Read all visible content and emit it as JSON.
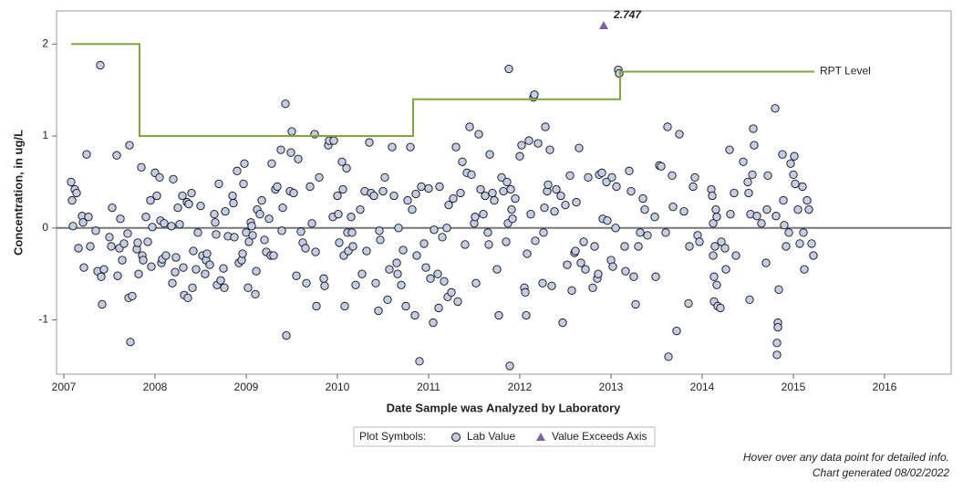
{
  "chart_data": {
    "type": "scatter",
    "x_label": "Date Sample was Analyzed by Laboratory",
    "y_label": "Concentration, in ug/L",
    "xlim": [
      2006.92,
      2016.73
    ],
    "ylim": [
      -1.59,
      2.36
    ],
    "xticks": [
      2007,
      2008,
      2009,
      2010,
      2011,
      2012,
      2013,
      2014,
      2015,
      2016
    ],
    "yticks": [
      -1,
      0,
      1,
      2
    ],
    "reference_y": 0,
    "legend_title": "Plot Symbols:",
    "footnotes": [
      "Hover over any data point for detailed info.",
      "Chart generated 08/02/2022"
    ],
    "series": [
      {
        "name": "Lab Value",
        "marker": "circle",
        "color": "#c3cde6",
        "x": [
          2007.08,
          2007.09,
          2007.1,
          2007.12,
          2007.14,
          2007.16,
          2007.2,
          2007.21,
          2007.22,
          2007.25,
          2007.27,
          2007.29,
          2007.35,
          2007.37,
          2007.4,
          2007.41,
          2007.42,
          2007.44,
          2007.5,
          2007.52,
          2007.53,
          2007.58,
          2007.59,
          2007.61,
          2007.62,
          2007.64,
          2007.66,
          2007.7,
          2007.71,
          2007.72,
          2007.73,
          2007.75,
          2007.8,
          2007.81,
          2007.82,
          2007.85,
          2007.86,
          2007.87,
          2007.9,
          2007.92,
          2007.95,
          2007.96,
          2007.97,
          2008.0,
          2008.02,
          2008.05,
          2008.06,
          2008.07,
          2008.08,
          2008.1,
          2008.12,
          2008.18,
          2008.19,
          2008.2,
          2008.22,
          2008.23,
          2008.25,
          2008.27,
          2008.3,
          2008.31,
          2008.32,
          2008.35,
          2008.36,
          2008.37,
          2008.4,
          2008.41,
          2008.42,
          2008.45,
          2008.47,
          2008.5,
          2008.52,
          2008.55,
          2008.56,
          2008.57,
          2008.6,
          2008.65,
          2008.66,
          2008.67,
          2008.68,
          2008.7,
          2008.72,
          2008.75,
          2008.76,
          2008.77,
          2008.8,
          2008.85,
          2008.86,
          2008.87,
          2008.9,
          2008.92,
          2008.95,
          2008.96,
          2008.97,
          2008.98,
          2009.0,
          2009.02,
          2009.03,
          2009.05,
          2009.06,
          2009.07,
          2009.1,
          2009.11,
          2009.12,
          2009.15,
          2009.17,
          2009.2,
          2009.22,
          2009.25,
          2009.27,
          2009.28,
          2009.3,
          2009.32,
          2009.34,
          2009.38,
          2009.39,
          2009.4,
          2009.43,
          2009.44,
          2009.48,
          2009.49,
          2009.5,
          2009.52,
          2009.55,
          2009.57,
          2009.6,
          2009.62,
          2009.65,
          2009.66,
          2009.7,
          2009.72,
          2009.75,
          2009.76,
          2009.77,
          2009.8,
          2009.85,
          2009.86,
          2009.9,
          2009.91,
          2009.95,
          2009.96,
          2010.0,
          2010.01,
          2010.02,
          2010.05,
          2010.06,
          2010.07,
          2010.08,
          2010.1,
          2010.11,
          2010.12,
          2010.15,
          2010.16,
          2010.17,
          2010.2,
          2010.25,
          2010.27,
          2010.3,
          2010.32,
          2010.35,
          2010.37,
          2010.4,
          2010.42,
          2010.45,
          2010.46,
          2010.47,
          2010.5,
          2010.52,
          2010.55,
          2010.57,
          2010.6,
          2010.62,
          2010.65,
          2010.66,
          2010.67,
          2010.7,
          2010.72,
          2010.75,
          2010.77,
          2010.8,
          2010.82,
          2010.85,
          2010.86,
          2010.87,
          2010.9,
          2010.92,
          2010.95,
          2010.97,
          2011.0,
          2011.02,
          2011.05,
          2011.06,
          2011.1,
          2011.11,
          2011.12,
          2011.15,
          2011.17,
          2011.2,
          2011.21,
          2011.22,
          2011.25,
          2011.27,
          2011.3,
          2011.32,
          2011.35,
          2011.37,
          2011.4,
          2011.42,
          2011.45,
          2011.47,
          2011.5,
          2011.51,
          2011.52,
          2011.55,
          2011.57,
          2011.6,
          2011.62,
          2011.65,
          2011.66,
          2011.67,
          2011.7,
          2011.72,
          2011.75,
          2011.77,
          2011.8,
          2011.82,
          2011.85,
          2011.86,
          2011.87,
          2011.88,
          2011.89,
          2011.9,
          2011.91,
          2011.92,
          2011.95,
          2012.0,
          2012.02,
          2012.05,
          2012.06,
          2012.07,
          2012.08,
          2012.1,
          2012.12,
          2012.15,
          2012.16,
          2012.17,
          2012.2,
          2012.25,
          2012.26,
          2012.27,
          2012.28,
          2012.3,
          2012.31,
          2012.33,
          2012.35,
          2012.38,
          2012.4,
          2012.45,
          2012.47,
          2012.5,
          2012.52,
          2012.55,
          2012.57,
          2012.6,
          2012.61,
          2012.62,
          2012.65,
          2012.67,
          2012.7,
          2012.72,
          2012.75,
          2012.8,
          2012.82,
          2012.85,
          2012.86,
          2012.87,
          2012.9,
          2012.91,
          2012.95,
          2012.96,
          2013.0,
          2013.01,
          2013.02,
          2013.05,
          2013.06,
          2013.08,
          2013.09,
          2013.15,
          2013.16,
          2013.2,
          2013.22,
          2013.25,
          2013.27,
          2013.3,
          2013.32,
          2013.35,
          2013.37,
          2013.4,
          2013.48,
          2013.49,
          2013.53,
          2013.55,
          2013.6,
          2013.62,
          2013.63,
          2013.67,
          2013.68,
          2013.72,
          2013.75,
          2013.8,
          2013.85,
          2013.86,
          2013.9,
          2013.92,
          2013.95,
          2013.97,
          2014.1,
          2014.11,
          2014.12,
          2014.12,
          2014.13,
          2014.13,
          2014.14,
          2014.15,
          2014.16,
          2014.16,
          2014.17,
          2014.2,
          2014.21,
          2014.25,
          2014.26,
          2014.3,
          2014.31,
          2014.35,
          2014.37,
          2014.45,
          2014.5,
          2014.51,
          2014.52,
          2014.53,
          2014.55,
          2014.56,
          2014.57,
          2014.6,
          2014.65,
          2014.7,
          2014.71,
          2014.72,
          2014.8,
          2014.81,
          2014.82,
          2014.82,
          2014.83,
          2014.83,
          2014.84,
          2014.88,
          2014.89,
          2014.9,
          2014.92,
          2014.95,
          2014.97,
          2015.0,
          2015.01,
          2015.02,
          2015.05,
          2015.07,
          2015.1,
          2015.11,
          2015.12,
          2015.15,
          2015.17,
          2015.2,
          2015.22
        ],
        "values": [
          0.5,
          0.3,
          0.02,
          0.42,
          0.38,
          -0.22,
          0.13,
          0.06,
          -0.43,
          0.8,
          0.12,
          -0.2,
          -0.03,
          -0.47,
          1.77,
          -0.53,
          -0.83,
          -0.45,
          -0.1,
          -0.2,
          0.22,
          0.79,
          -0.52,
          -0.22,
          0.1,
          -0.35,
          -0.17,
          -0.06,
          -0.76,
          0.9,
          -1.24,
          -0.74,
          -0.23,
          -0.16,
          -0.5,
          0.66,
          -0.3,
          -0.35,
          0.12,
          -0.15,
          0.3,
          -0.42,
          0.01,
          0.6,
          0.35,
          0.55,
          0.08,
          -0.38,
          -0.34,
          0.05,
          -0.3,
          0.02,
          -0.6,
          0.53,
          -0.48,
          -0.32,
          0.22,
          0.04,
          0.35,
          -0.43,
          -0.73,
          0.28,
          -0.76,
          0.26,
          0.38,
          -0.65,
          -0.25,
          -0.45,
          -0.05,
          0.24,
          -0.3,
          -0.5,
          -0.35,
          -0.28,
          -0.4,
          0.15,
          0.06,
          -0.07,
          -0.62,
          0.48,
          -0.57,
          -0.44,
          -0.65,
          0.18,
          -0.09,
          0.35,
          0.27,
          -0.1,
          0.62,
          -0.38,
          -0.35,
          -0.28,
          0.48,
          0.7,
          -0.05,
          -0.65,
          -0.15,
          0.06,
          0.02,
          -0.08,
          -0.72,
          -0.47,
          0.2,
          0.15,
          0.3,
          -0.13,
          -0.26,
          0.1,
          -0.3,
          0.7,
          -0.3,
          0.42,
          0.45,
          0.85,
          -0.03,
          0.22,
          1.35,
          -1.17,
          0.4,
          0.82,
          1.05,
          0.38,
          -0.52,
          0.75,
          -0.04,
          -0.16,
          -0.22,
          -0.6,
          0.45,
          0.05,
          1.02,
          -0.26,
          -0.85,
          0.55,
          -0.55,
          -0.63,
          0.9,
          0.95,
          0.12,
          0.95,
          0.35,
          0.15,
          -0.16,
          0.72,
          0.42,
          -0.3,
          -0.85,
          0.65,
          -0.05,
          -0.25,
          0.12,
          -0.05,
          -0.2,
          -0.62,
          0.2,
          -0.5,
          0.4,
          -0.25,
          0.93,
          0.38,
          0.35,
          -0.6,
          -0.9,
          -0.03,
          -0.13,
          0.4,
          0.55,
          -0.78,
          -0.45,
          0.88,
          0.35,
          -0.38,
          -0.5,
          0.0,
          -0.62,
          -0.24,
          -0.85,
          0.3,
          0.88,
          0.2,
          -0.95,
          0.37,
          -0.3,
          -1.45,
          0.45,
          -0.17,
          -0.43,
          0.43,
          -0.55,
          -1.03,
          -0.02,
          -0.5,
          -0.87,
          0.45,
          -0.1,
          -0.58,
          0.0,
          -0.75,
          0.25,
          -0.7,
          0.32,
          0.88,
          -0.8,
          0.38,
          0.72,
          -0.18,
          0.6,
          1.1,
          0.58,
          0.05,
          0.12,
          -0.6,
          1.02,
          0.42,
          0.15,
          0.35,
          -0.05,
          -0.18,
          0.8,
          0.38,
          0.3,
          -0.45,
          -0.95,
          0.55,
          0.4,
          -0.15,
          0.5,
          0.05,
          1.73,
          -1.5,
          0.42,
          0.2,
          0.1,
          0.32,
          0.78,
          0.9,
          -0.65,
          -0.7,
          -0.95,
          -0.28,
          0.95,
          0.15,
          1.42,
          1.45,
          -0.14,
          0.92,
          -0.6,
          -0.05,
          0.22,
          1.1,
          0.4,
          0.47,
          0.85,
          -0.63,
          0.18,
          0.42,
          0.35,
          -1.03,
          0.25,
          -0.4,
          0.57,
          -0.68,
          -0.27,
          -0.25,
          0.28,
          0.87,
          -0.38,
          -0.15,
          -0.45,
          0.55,
          -0.65,
          -0.2,
          -0.55,
          -0.5,
          0.58,
          0.6,
          0.1,
          0.5,
          0.08,
          -0.35,
          0.55,
          -0.42,
          0.0,
          0.45,
          1.72,
          1.68,
          -0.2,
          -0.47,
          0.62,
          0.4,
          -0.53,
          -0.83,
          -0.2,
          -0.05,
          0.32,
          0.2,
          -0.08,
          0.12,
          -0.53,
          0.68,
          0.67,
          -0.05,
          1.1,
          -1.4,
          0.57,
          0.23,
          -1.12,
          1.02,
          0.18,
          -0.82,
          -0.2,
          0.45,
          0.55,
          -0.08,
          -0.15,
          0.42,
          0.35,
          0.05,
          -0.3,
          -0.53,
          -0.8,
          -0.2,
          0.2,
          0.12,
          -0.62,
          -0.85,
          -0.87,
          -0.15,
          -0.22,
          -0.45,
          0.85,
          0.15,
          0.38,
          -0.3,
          0.72,
          0.5,
          0.38,
          -0.78,
          0.15,
          0.58,
          1.08,
          0.9,
          0.13,
          0.05,
          -0.38,
          0.2,
          0.57,
          1.3,
          0.13,
          -1.25,
          -1.38,
          -1.03,
          -1.08,
          -0.67,
          0.8,
          0.3,
          0.03,
          -0.2,
          -0.05,
          0.7,
          0.58,
          0.78,
          0.48,
          0.2,
          -0.17,
          0.45,
          -0.05,
          -0.45,
          0.3,
          0.2,
          -0.17,
          -0.3
        ]
      },
      {
        "name": "Value Exceeds Axis",
        "marker": "triangle",
        "color": "#7f60a8",
        "x": [
          2012.92
        ],
        "values": [
          2.747
        ]
      },
      {
        "name": "RPT Level",
        "marker": "line",
        "color": "#7ea83b",
        "x": [
          2007.08,
          2007.83,
          2007.83,
          2010.83,
          2010.83,
          2013.1,
          2013.1,
          2015.23
        ],
        "values": [
          2,
          2,
          1,
          1,
          1.4,
          1.4,
          1.7,
          1.7
        ]
      }
    ]
  }
}
